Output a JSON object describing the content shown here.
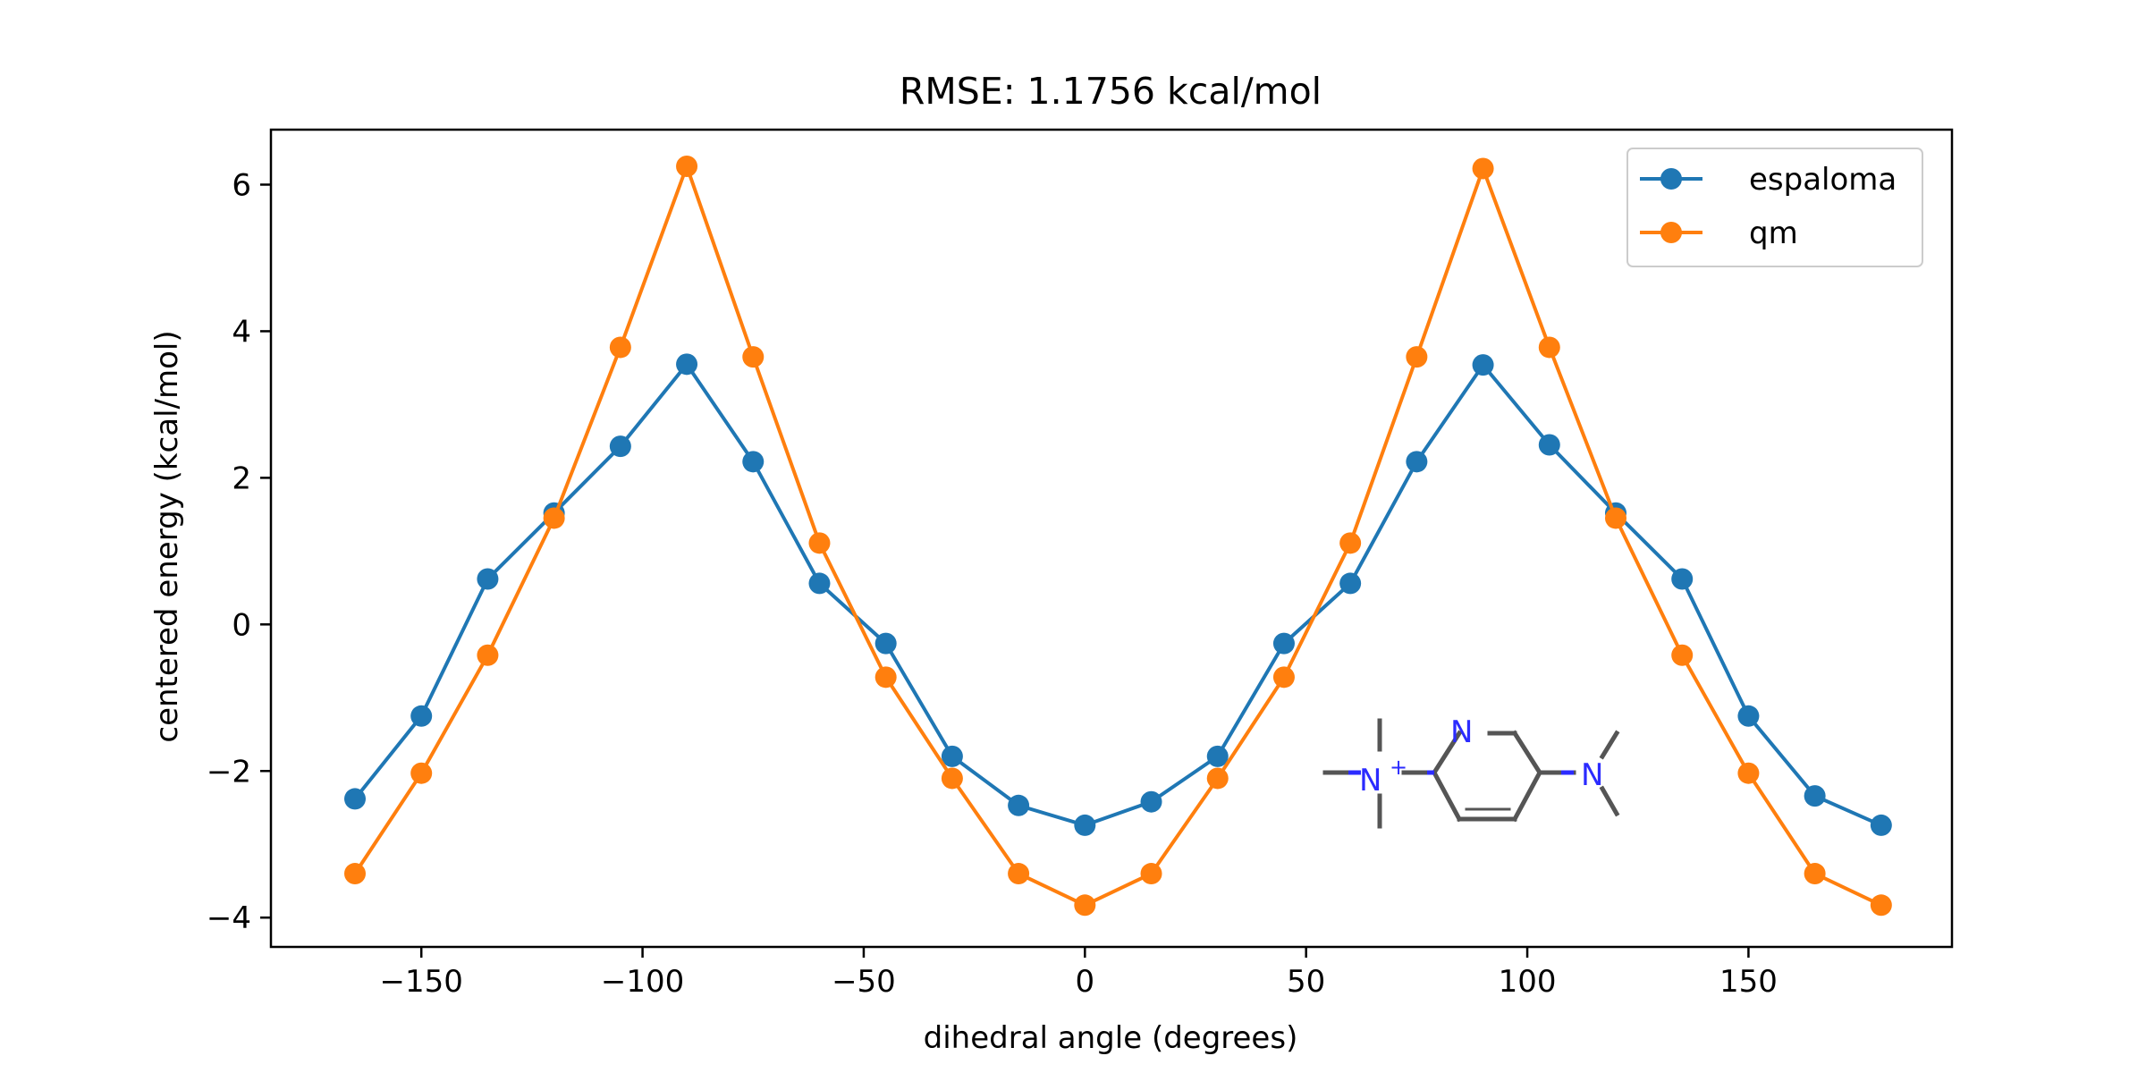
{
  "chart_data": {
    "type": "line",
    "title": "RMSE: 1.1756 kcal/mol",
    "xlabel": "dihedral angle (degrees)",
    "ylabel": "centered energy (kcal/mol)",
    "xlim": [
      -184,
      196
    ],
    "ylim": [
      -4.4,
      6.75
    ],
    "xticks": [
      -150,
      -100,
      -50,
      0,
      50,
      100,
      150
    ],
    "xtick_labels": [
      "−150",
      "−100",
      "−50",
      "0",
      "50",
      "100",
      "150"
    ],
    "yticks": [
      -4,
      -2,
      0,
      2,
      4,
      6
    ],
    "ytick_labels": [
      "−4",
      "−2",
      "0",
      "2",
      "4",
      "6"
    ],
    "grid": false,
    "legend_position": "top-right",
    "x": [
      -165,
      -150,
      -135,
      -120,
      -105,
      -90,
      -75,
      -60,
      -45,
      -30,
      -15,
      0,
      15,
      30,
      45,
      60,
      75,
      90,
      105,
      120,
      135,
      150,
      165,
      180
    ],
    "series": [
      {
        "name": "espaloma",
        "color": "#1f77b4",
        "values": [
          -2.38,
          -1.25,
          0.62,
          1.52,
          2.43,
          3.55,
          2.22,
          0.56,
          -0.26,
          -1.8,
          -2.47,
          -2.74,
          -2.42,
          -1.8,
          -0.26,
          0.56,
          2.22,
          3.54,
          2.45,
          1.52,
          0.62,
          -1.25,
          -2.34,
          -2.74
        ]
      },
      {
        "name": "qm",
        "color": "#ff7f0e",
        "values": [
          -3.4,
          -2.03,
          -0.42,
          1.45,
          3.78,
          6.25,
          3.65,
          1.11,
          -0.72,
          -2.1,
          -3.4,
          -3.83,
          -3.4,
          -2.1,
          -0.72,
          1.11,
          3.65,
          6.22,
          3.78,
          1.45,
          -0.42,
          -2.03,
          -3.4,
          -3.83
        ]
      }
    ]
  },
  "molecule": {
    "atom_labels": [
      "N",
      "+",
      "N",
      "N"
    ]
  }
}
